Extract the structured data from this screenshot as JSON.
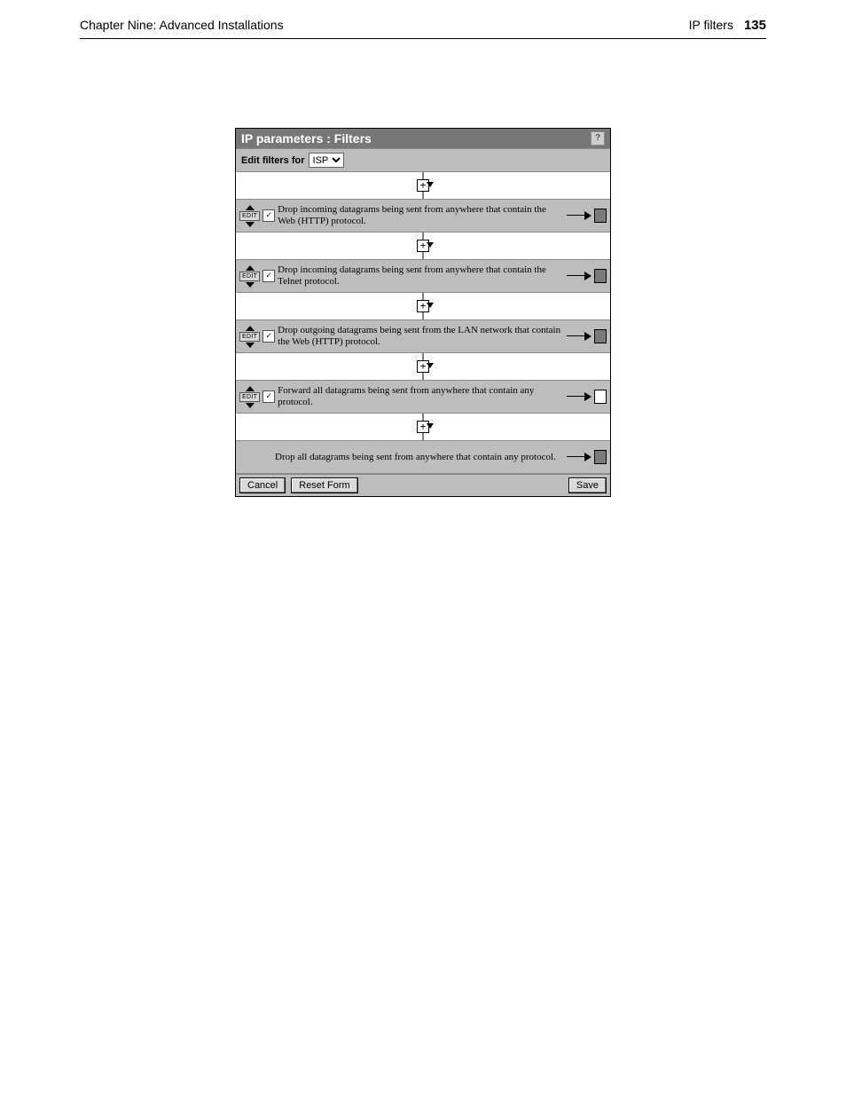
{
  "header": {
    "chapter": "Chapter Nine: Advanced Installations",
    "section": "IP filters",
    "page_number": "135"
  },
  "panel": {
    "title": "IP parameters : Filters",
    "help_glyph": "?",
    "toolbar": {
      "label": "Edit filters for",
      "selected": "ISP"
    },
    "edit_label": "EDIT",
    "rules": [
      {
        "checked": true,
        "action": "block",
        "desc": "Drop incoming datagrams being sent from anywhere that contain the Web (HTTP) protocol."
      },
      {
        "checked": true,
        "action": "block",
        "desc": "Drop incoming datagrams being sent from anywhere that contain the Telnet protocol."
      },
      {
        "checked": true,
        "action": "block",
        "desc": "Drop outgoing datagrams being sent from the LAN network that contain the Web (HTTP) protocol."
      },
      {
        "checked": true,
        "action": "allow",
        "desc": "Forward all datagrams being sent from anywhere that contain any protocol."
      }
    ],
    "default_rule": {
      "action": "block",
      "desc": "Drop all datagrams being sent from anywhere that contain any protocol."
    },
    "buttons": {
      "cancel": "Cancel",
      "reset": "Reset Form",
      "save": "Save"
    }
  }
}
